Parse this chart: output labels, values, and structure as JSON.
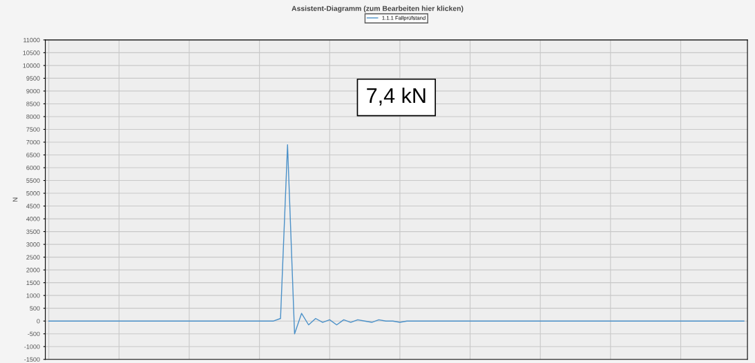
{
  "chart_data": {
    "type": "line",
    "title": "Assistent-Diagramm (zum Bearbeiten hier klicken)",
    "ylabel": "N",
    "annotations": [
      "7,4 kN"
    ],
    "categories": [
      null,
      null,
      null,
      null,
      null,
      null,
      null,
      null,
      null,
      null,
      null,
      null,
      null,
      null,
      null,
      null,
      null,
      null,
      null,
      null,
      null,
      null,
      null,
      null,
      null,
      null,
      null,
      null,
      null,
      null,
      null,
      null,
      null,
      null,
      null,
      null,
      null,
      null,
      null,
      null,
      null,
      null,
      null,
      null,
      null,
      null,
      null,
      null,
      null,
      null,
      null,
      null,
      null,
      null,
      null,
      null,
      null,
      null,
      null,
      null,
      null,
      null,
      null,
      null,
      null,
      null,
      null,
      null,
      null,
      null,
      null,
      null,
      null,
      null,
      null,
      null,
      null,
      null,
      null,
      null,
      null,
      null,
      null,
      null,
      null,
      null,
      null,
      null,
      null,
      null,
      null,
      null,
      null,
      null,
      null,
      null,
      null,
      null,
      null,
      null
    ],
    "series": [
      {
        "name": "1.1.1 Fallprüfstand",
        "color": "#4a90c8",
        "values": [
          0,
          0,
          0,
          0,
          0,
          0,
          0,
          0,
          0,
          0,
          0,
          0,
          0,
          0,
          0,
          0,
          0,
          0,
          0,
          0,
          0,
          0,
          0,
          0,
          0,
          0,
          0,
          0,
          0,
          0,
          0,
          0,
          0,
          100,
          6900,
          -500,
          300,
          -150,
          100,
          -50,
          50,
          -150,
          50,
          -50,
          50,
          0,
          -50,
          50,
          0,
          0,
          -50,
          0,
          0,
          0,
          0,
          0,
          0,
          0,
          0,
          0,
          0,
          0,
          0,
          0,
          0,
          0,
          0,
          0,
          0,
          0,
          0,
          0,
          0,
          0,
          0,
          0,
          0,
          0,
          0,
          0,
          0,
          0,
          0,
          0,
          0,
          0,
          0,
          0,
          0,
          0,
          0,
          0,
          0,
          0,
          0,
          0,
          0,
          0,
          0,
          0
        ]
      }
    ],
    "ylim": [
      -1500,
      11000
    ],
    "yticks": [
      -1500,
      -1000,
      -500,
      0,
      500,
      1000,
      1500,
      2000,
      2500,
      3000,
      3500,
      4000,
      4500,
      5000,
      5500,
      6000,
      6500,
      7000,
      7500,
      8000,
      8500,
      9000,
      9500,
      10000,
      10500,
      11000
    ],
    "grid": true,
    "legend": "top"
  }
}
